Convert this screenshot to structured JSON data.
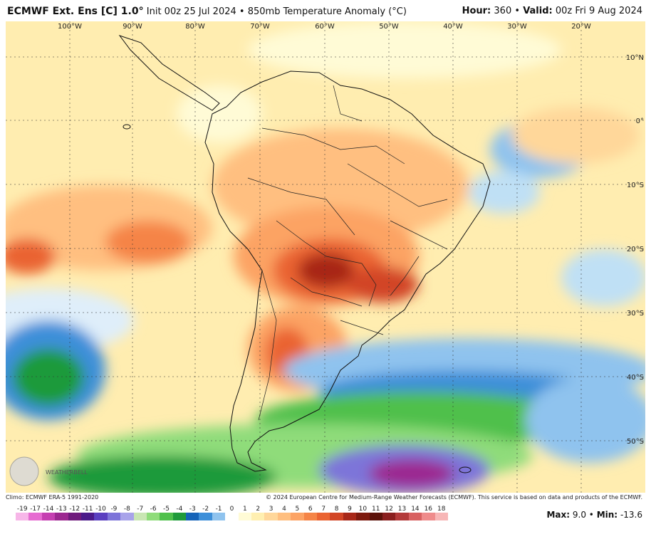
{
  "header": {
    "model": "ECMWF Ext. Ens [C] 1.0°",
    "init": "Init 00z 25 Jul 2024",
    "variable": "850mb Temperature Anomaly (°C)",
    "hour_label": "Hour:",
    "hour": "360",
    "valid_label": "Valid:",
    "valid": "00z Fri 9 Aug 2024"
  },
  "map": {
    "lon_labels": [
      "100°W",
      "90°W",
      "80°W",
      "70°W",
      "60°W",
      "50°W",
      "40°W",
      "30°W",
      "20°W"
    ],
    "lat_labels": [
      "10°N",
      "0°",
      "10°S",
      "20°S",
      "30°S",
      "40°S",
      "50°S"
    ],
    "logo": "WEATHERBELL"
  },
  "footer": {
    "climo": "Climo: ECMWF ERA-5 1991-2020",
    "copyright": "© 2024 European Centre for Medium-Range Weather Forecasts (ECMWF). This service is based on data and products of the ECMWF.",
    "max_label": "Max:",
    "max": "9.0",
    "min_label": "Min:",
    "min": "-13.6"
  },
  "scale": {
    "labels": [
      "-19",
      "-17",
      "-14",
      "-13",
      "-12",
      "-11",
      "-10",
      "-9",
      "-8",
      "-7",
      "-6",
      "-5",
      "-4",
      "-3",
      "-2",
      "-1",
      "0",
      "1",
      "2",
      "3",
      "4",
      "5",
      "6",
      "7",
      "8",
      "9",
      "10",
      "11",
      "12",
      "13",
      "14",
      "16",
      "18"
    ],
    "colors": [
      "#f7b6e8",
      "#e66bd1",
      "#c53fb1",
      "#9c2790",
      "#6f1a7c",
      "#4b1a8a",
      "#5a3fc0",
      "#7d74d9",
      "#a8a3ea",
      "#c9e6b3",
      "#8fdc7a",
      "#4fc04b",
      "#1f9a3a",
      "#1563b8",
      "#3d8fd9",
      "#8fc3ee",
      "#ffffff",
      "#fffbd6",
      "#ffefb0",
      "#ffd79a",
      "#ffbf80",
      "#fca364",
      "#f58446",
      "#ea6331",
      "#d24525",
      "#a82818",
      "#7e1a0e",
      "#5c120a",
      "#8a1f1f",
      "#b33a3a",
      "#d86161",
      "#ef8b8b",
      "#f7b6b6"
    ]
  }
}
